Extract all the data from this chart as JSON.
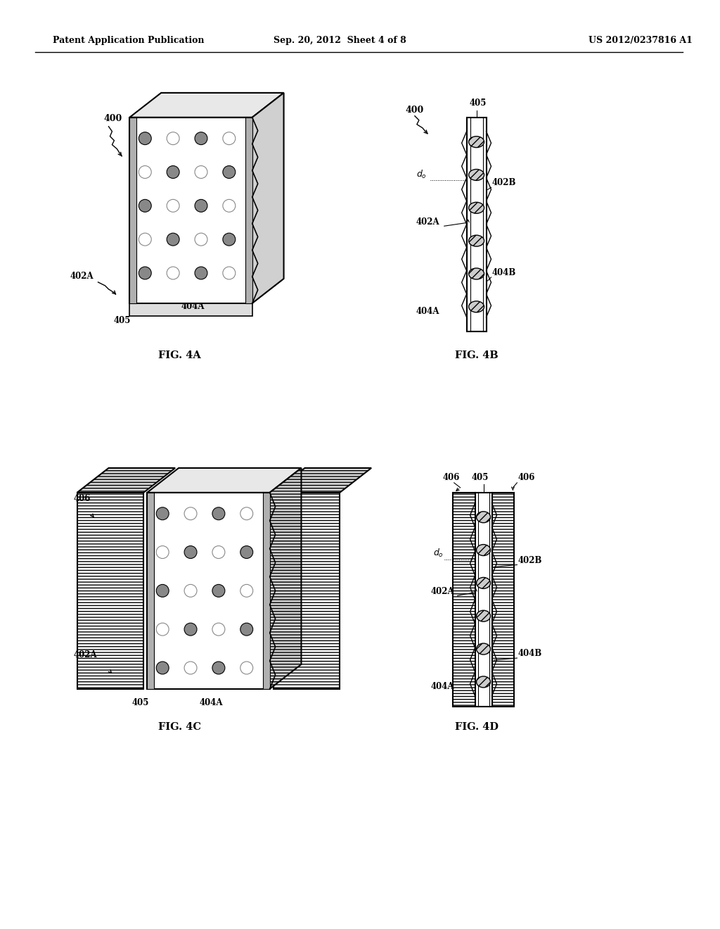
{
  "header_left": "Patent Application Publication",
  "header_center": "Sep. 20, 2012  Sheet 4 of 8",
  "header_right": "US 2012/0237816 A1",
  "background_color": "#ffffff",
  "line_color": "#000000"
}
